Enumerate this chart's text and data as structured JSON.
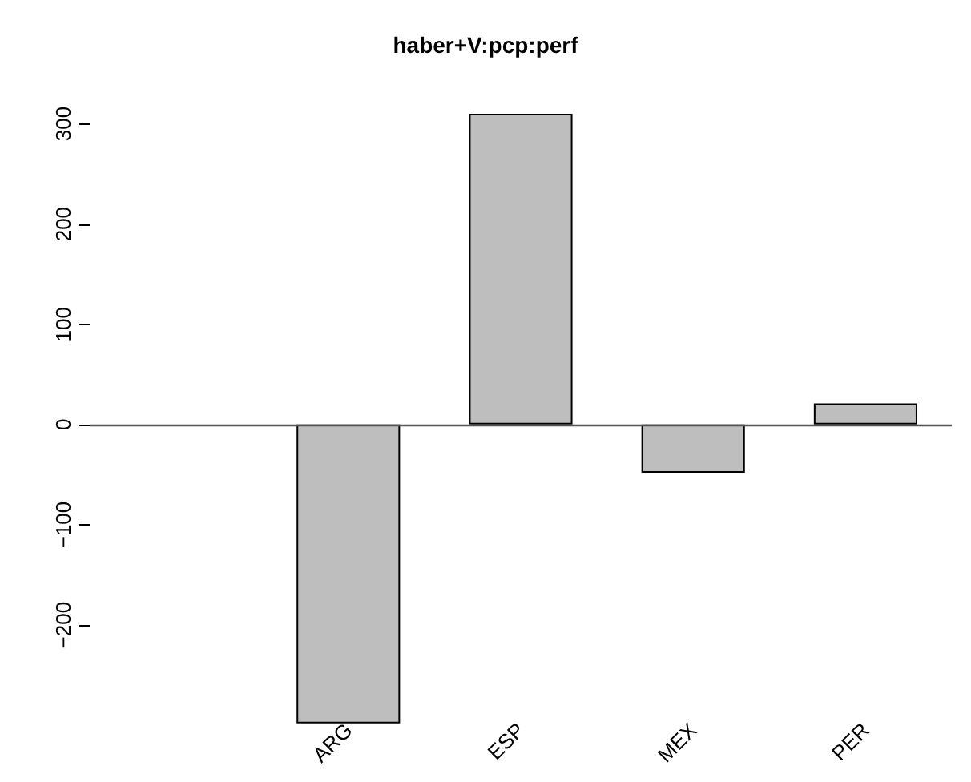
{
  "chart_data": {
    "type": "bar",
    "title": "haber+V:pcp:perf",
    "categories": [
      null,
      "ARG",
      "ESP",
      "MEX",
      "PER"
    ],
    "values": [
      null,
      -298,
      310,
      -48,
      21
    ],
    "color": "#bebebe",
    "ylim": [
      -298,
      310
    ],
    "yticks": [
      -200,
      -100,
      0,
      100,
      200,
      300
    ],
    "grid": false,
    "ref_lines": [
      {
        "axis": "y",
        "value": 0,
        "color": "#555555"
      }
    ]
  }
}
